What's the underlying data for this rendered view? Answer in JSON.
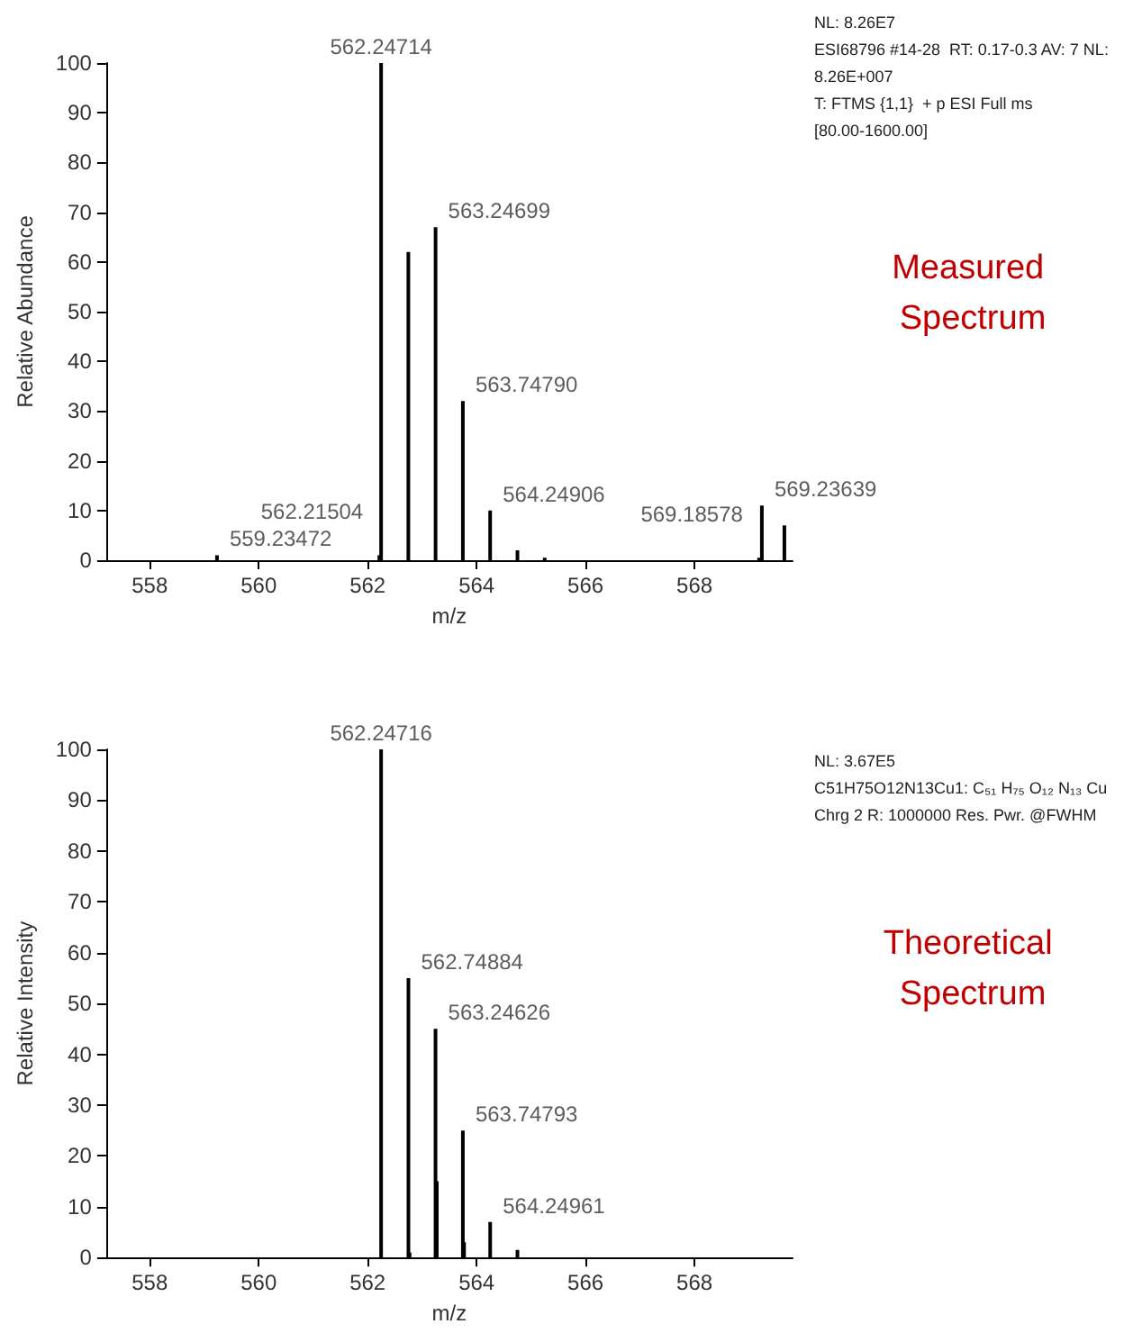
{
  "chart_data": [
    {
      "type": "bar",
      "xlabel": "m/z",
      "ylabel": "Relative Abundance",
      "color": "#000000",
      "x": [
        559.23472,
        562.21504,
        562.24714,
        562.7475,
        563.24699,
        563.7479,
        564.24906,
        564.75,
        565.25,
        569.18578,
        569.23639,
        569.65
      ],
      "values": [
        1,
        1,
        100,
        62,
        67,
        32,
        10,
        2,
        0.5,
        0.5,
        11,
        7
      ],
      "xlim": [
        557.2,
        569.8
      ],
      "xticks": [
        558,
        560,
        562,
        564,
        566,
        568
      ],
      "ylim": [
        0,
        100
      ],
      "yticks": [
        0,
        10,
        20,
        30,
        40,
        50,
        60,
        70,
        80,
        90,
        100
      ],
      "annotations": [
        "NL: 8.26E7",
        "ESI68796 #14-28  RT: 0.17-0.3 AV: 7 NL:",
        "8.26E+007",
        "T: FTMS {1,1}  + p ESI Full ms",
        "[80.00-1600.00]",
        "Measured Spectrum",
        {
          "text": "559.23472",
          "x": 559.23472,
          "y": 1
        },
        {
          "text": "562.21504",
          "x": 562.21504,
          "y": 1
        },
        {
          "text": "562.24714",
          "x": 562.24714,
          "y": 100
        },
        {
          "text": "563.24699",
          "x": 563.24699,
          "y": 67
        },
        {
          "text": "563.74790",
          "x": 563.7479,
          "y": 32
        },
        {
          "text": "564.24906",
          "x": 564.24906,
          "y": 10
        },
        {
          "text": "569.18578",
          "x": 569.18578,
          "y": 0.5
        },
        {
          "text": "569.23639",
          "x": 569.23639,
          "y": 11
        }
      ]
    },
    {
      "type": "bar",
      "xlabel": "m/z",
      "ylabel": "Relative Intensity",
      "color": "#000000",
      "x": [
        562.24716,
        562.74884,
        562.77,
        563.24626,
        563.27,
        563.74793,
        563.77,
        564.24961,
        564.75
      ],
      "values": [
        100,
        55,
        1,
        45,
        15,
        25,
        3,
        7,
        1.5
      ],
      "xlim": [
        557.2,
        569.8
      ],
      "xticks": [
        558,
        560,
        562,
        564,
        566,
        568
      ],
      "ylim": [
        0,
        100
      ],
      "yticks": [
        0,
        10,
        20,
        30,
        40,
        50,
        60,
        70,
        80,
        90,
        100
      ],
      "annotations": [
        "NL: 3.67E5",
        "C51H75O12N13Cu1: C₅₁ H₇₅ O₁₂ N₁₃ Cu",
        "Chrg 2 R: 1000000 Res. Pwr. @FWHM",
        "Theoretical Spectrum",
        {
          "text": "562.24716",
          "x": 562.24716,
          "y": 100
        },
        {
          "text": "562.74884",
          "x": 562.74884,
          "y": 55
        },
        {
          "text": "563.24626",
          "x": 563.24626,
          "y": 45
        },
        {
          "text": "563.74793",
          "x": 563.74793,
          "y": 25
        },
        {
          "text": "564.24961",
          "x": 564.24961,
          "y": 7
        }
      ]
    }
  ]
}
